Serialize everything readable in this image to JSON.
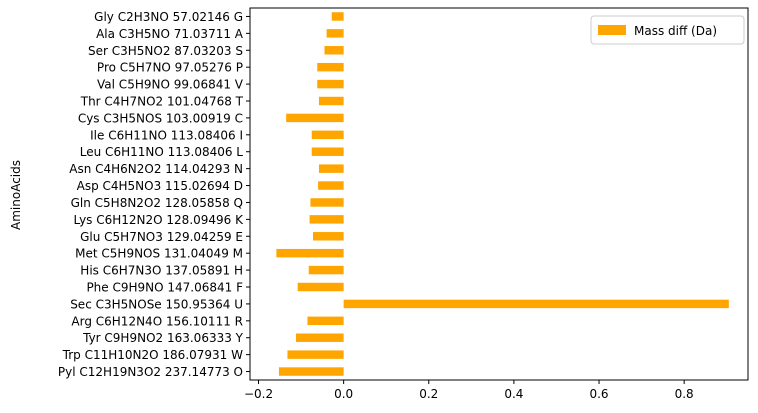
{
  "chart_data": {
    "type": "bar",
    "orientation": "horizontal",
    "ylabel": "AminoAcids",
    "xlabel": "",
    "xlim": [
      -0.22,
      0.95
    ],
    "x_ticks": [
      -0.2,
      0.0,
      0.2,
      0.4,
      0.6,
      0.8
    ],
    "x_tick_labels": [
      "−0.2",
      "0.0",
      "0.2",
      "0.4",
      "0.6",
      "0.8"
    ],
    "legend": {
      "position": "top-right",
      "entries": [
        "Mass diff (Da)"
      ]
    },
    "bar_color": "#ffa500",
    "categories": [
      "Gly C2H3NO 57.02146 G",
      "Ala C3H5NO 71.03711 A",
      "Ser C3H5NO2 87.03203 S",
      "Pro C5H7NO 97.05276 P",
      "Val C5H9NO 99.06841 V",
      "Thr C4H7NO2 101.04768 T",
      "Cys C3H5NOS 103.00919 C",
      "Ile C6H11NO 113.08406 I",
      "Leu C6H11NO 113.08406 L",
      "Asn C4H6N2O2 114.04293 N",
      "Asp C4H5NO3 115.02694 D",
      "Gln C5H8N2O2 128.05858 Q",
      "Lys C6H12N2O 128.09496 K",
      "Glu C5H7NO3 129.04259 E",
      "Met C5H9NOS 131.04049 M",
      "His C6H7N3O 137.05891 H",
      "Phe C9H9NO 147.06841 F",
      "Sec C3H5NOSe 150.95364 U",
      "Arg C6H12N4O 156.10111 R",
      "Tyr C9H9NO2 163.06333 Y",
      "Trp C11H10N2O 186.07931 W",
      "Pyl C12H19N3O2 237.14773 O"
    ],
    "series": [
      {
        "name": "Mass diff (Da)",
        "values": [
          -0.028,
          -0.04,
          -0.045,
          -0.062,
          -0.062,
          -0.058,
          -0.135,
          -0.075,
          -0.075,
          -0.058,
          -0.06,
          -0.078,
          -0.08,
          -0.072,
          -0.158,
          -0.082,
          -0.108,
          0.905,
          -0.085,
          -0.112,
          -0.132,
          -0.152
        ]
      }
    ]
  }
}
